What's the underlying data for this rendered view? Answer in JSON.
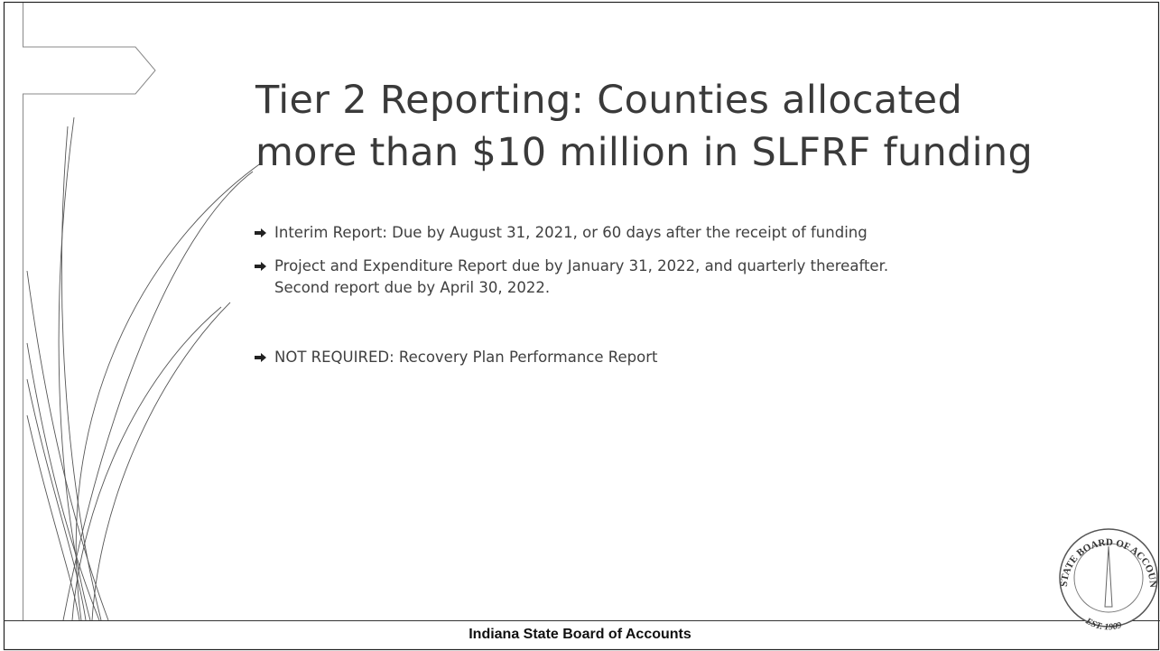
{
  "slide": {
    "title_lines": [
      "Tier 2 Reporting: Counties allocated",
      "more than $10 million in SLFRF funding"
    ],
    "bullets": [
      "Interim Report: Due by August 31, 2021, or 60 days after the receipt of funding",
      "Project and Expenditure Report due by January 31, 2022, and quarterly thereafter.  Second report due by April 30, 2022.",
      "NOT REQUIRED: Recovery Plan Performance Report"
    ],
    "seal": {
      "ring_text": "STATE BOARD OF ACCOUNTS",
      "est_text": "EST. 1909"
    },
    "footer": "Indiana State Board of Accounts"
  }
}
